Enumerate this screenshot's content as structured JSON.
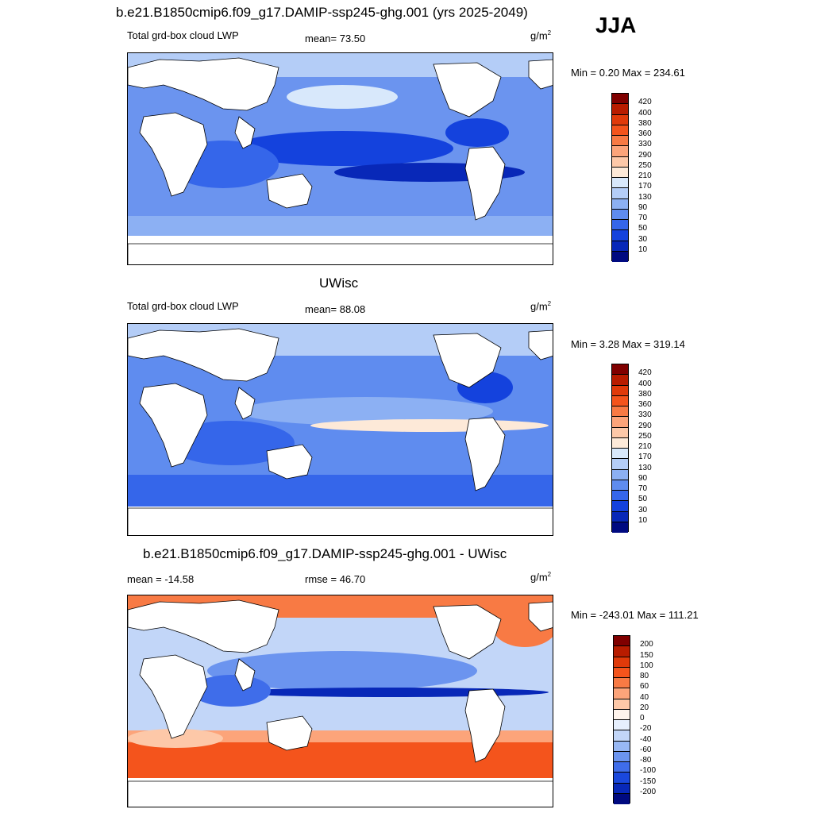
{
  "season": "JJA",
  "panels": [
    {
      "title": "b.e21.B1850cmip6.f09_g17.DAMIP-ssp245-ghg.001 (yrs 2025-2049)",
      "left_label": "Total grd-box cloud LWP",
      "center_label": "mean=  73.50",
      "units": "g/m",
      "units_sup": "2",
      "minmax": "Min =   0.20 Max = 234.61"
    },
    {
      "title": "UWisc",
      "left_label": "Total grd-box cloud LWP",
      "center_label": "mean=  88.08",
      "units": "g/m",
      "units_sup": "2",
      "minmax": "Min =   3.28 Max = 319.14"
    },
    {
      "title": "b.e21.B1850cmip6.f09_g17.DAMIP-ssp245-ghg.001 - UWisc",
      "left_label": "mean = -14.58",
      "center_label": "rmse =  46.70",
      "units": "g/m",
      "units_sup": "2",
      "minmax": "Min = -243.01 Max = 111.21"
    }
  ],
  "colorbars": {
    "lwp": {
      "labels": [
        "420",
        "400",
        "380",
        "360",
        "330",
        "290",
        "250",
        "210",
        "170",
        "130",
        "90",
        "70",
        "50",
        "30",
        "10"
      ],
      "colors": [
        "#800000",
        "#b81c00",
        "#e03a0a",
        "#f4541c",
        "#f87a44",
        "#fca47a",
        "#fdc8a8",
        "#fde9d8",
        "#d8e8fb",
        "#b4cdf7",
        "#8cb0f3",
        "#5f8cef",
        "#3566ea",
        "#1442dd",
        "#0828b8",
        "#000a80"
      ]
    },
    "diff": {
      "labels": [
        "200",
        "150",
        "100",
        "80",
        "60",
        "40",
        "20",
        "0",
        "-20",
        "-40",
        "-60",
        "-80",
        "-100",
        "-150",
        "-200"
      ],
      "colors": [
        "#800000",
        "#b81c00",
        "#e03a0a",
        "#f4541c",
        "#f87a44",
        "#fca47a",
        "#fdc8a8",
        "#fff4ec",
        "#e6effd",
        "#c2d6f8",
        "#98b8f4",
        "#6b94ef",
        "#3f6dea",
        "#1a48dd",
        "#0828b8",
        "#000a80"
      ]
    }
  }
}
